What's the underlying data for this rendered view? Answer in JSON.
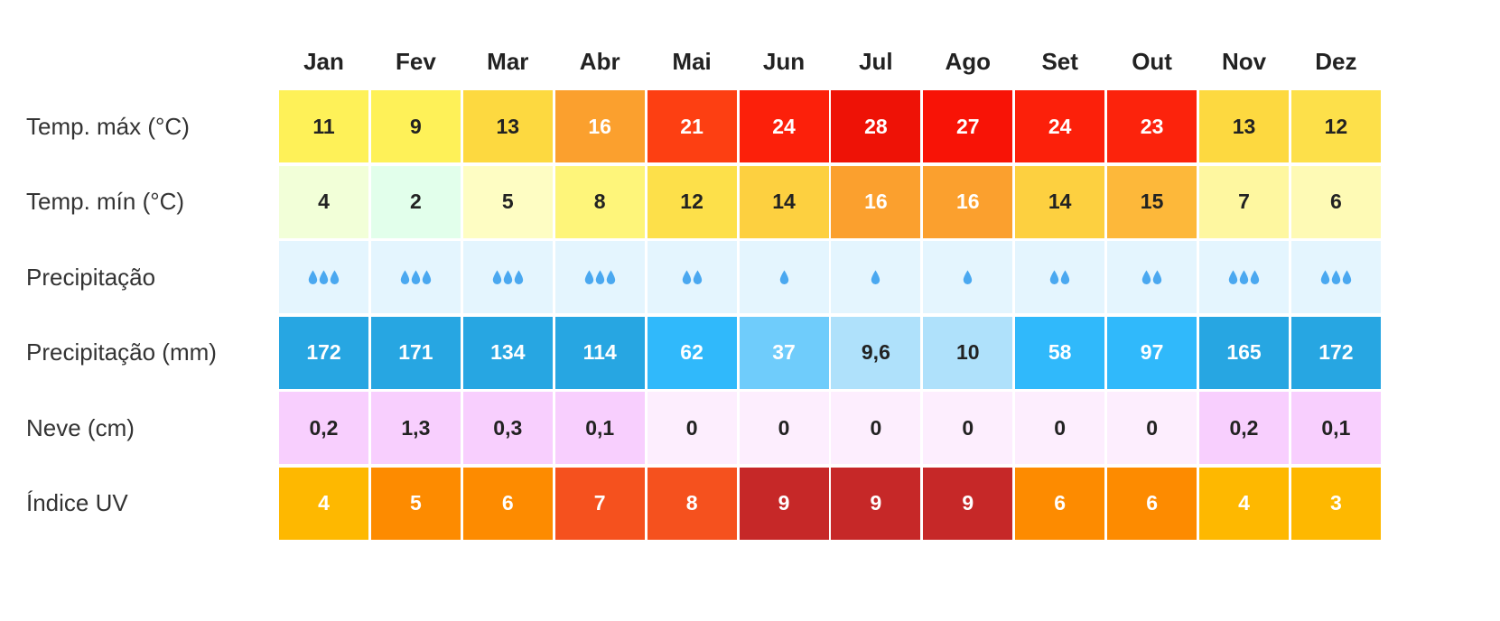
{
  "months": [
    "Jan",
    "Fev",
    "Mar",
    "Abr",
    "Mai",
    "Jun",
    "Jul",
    "Ago",
    "Set",
    "Out",
    "Nov",
    "Dez"
  ],
  "rows": [
    {
      "label": "Temp. máx (°C)",
      "cells": [
        {
          "text": "11",
          "bg": "#FEF158",
          "fg": "#222222"
        },
        {
          "text": "9",
          "bg": "#FEF158",
          "fg": "#222222"
        },
        {
          "text": "13",
          "bg": "#FDD940",
          "fg": "#222222"
        },
        {
          "text": "16",
          "bg": "#FBA02E",
          "fg": "#ffffff"
        },
        {
          "text": "21",
          "bg": "#FD3F12",
          "fg": "#ffffff"
        },
        {
          "text": "24",
          "bg": "#FC200A",
          "fg": "#ffffff"
        },
        {
          "text": "28",
          "bg": "#EE1206",
          "fg": "#ffffff"
        },
        {
          "text": "27",
          "bg": "#F81306",
          "fg": "#ffffff"
        },
        {
          "text": "24",
          "bg": "#FC200A",
          "fg": "#ffffff"
        },
        {
          "text": "23",
          "bg": "#FC230C",
          "fg": "#ffffff"
        },
        {
          "text": "13",
          "bg": "#FDD940",
          "fg": "#222222"
        },
        {
          "text": "12",
          "bg": "#FDE04A",
          "fg": "#222222"
        }
      ]
    },
    {
      "label": "Temp. mín (°C)",
      "cells": [
        {
          "text": "4",
          "bg": "#F2FFD8",
          "fg": "#222222"
        },
        {
          "text": "2",
          "bg": "#E2FFEB",
          "fg": "#222222"
        },
        {
          "text": "5",
          "bg": "#FEFDC3",
          "fg": "#222222"
        },
        {
          "text": "8",
          "bg": "#FEF57A",
          "fg": "#222222"
        },
        {
          "text": "12",
          "bg": "#FDE04A",
          "fg": "#222222"
        },
        {
          "text": "14",
          "bg": "#FDD040",
          "fg": "#222222"
        },
        {
          "text": "16",
          "bg": "#FBA02E",
          "fg": "#ffffff"
        },
        {
          "text": "16",
          "bg": "#FBA02E",
          "fg": "#ffffff"
        },
        {
          "text": "14",
          "bg": "#FDD040",
          "fg": "#222222"
        },
        {
          "text": "15",
          "bg": "#FDB83A",
          "fg": "#222222"
        },
        {
          "text": "7",
          "bg": "#FEF7A0",
          "fg": "#222222"
        },
        {
          "text": "6",
          "bg": "#FEFAB5",
          "fg": "#222222"
        }
      ]
    },
    {
      "label": "Precipitação",
      "cells": [
        {
          "drops": 3,
          "bg": "#E4F5FE"
        },
        {
          "drops": 3,
          "bg": "#E4F5FE"
        },
        {
          "drops": 3,
          "bg": "#E4F5FE"
        },
        {
          "drops": 3,
          "bg": "#E4F5FE"
        },
        {
          "drops": 2,
          "bg": "#E4F5FE"
        },
        {
          "drops": 1,
          "bg": "#E4F5FE"
        },
        {
          "drops": 1,
          "bg": "#E4F5FE"
        },
        {
          "drops": 1,
          "bg": "#E4F5FE"
        },
        {
          "drops": 2,
          "bg": "#E4F5FE"
        },
        {
          "drops": 2,
          "bg": "#E4F5FE"
        },
        {
          "drops": 3,
          "bg": "#E4F5FE"
        },
        {
          "drops": 3,
          "bg": "#E4F5FE"
        }
      ],
      "drop_color": "#4AA8F0"
    },
    {
      "label": "Precipitação (mm)",
      "cells": [
        {
          "text": "172",
          "bg": "#27A6E2",
          "fg": "#ffffff"
        },
        {
          "text": "171",
          "bg": "#27A6E2",
          "fg": "#ffffff"
        },
        {
          "text": "134",
          "bg": "#27A6E2",
          "fg": "#ffffff"
        },
        {
          "text": "114",
          "bg": "#27A6E2",
          "fg": "#ffffff"
        },
        {
          "text": "62",
          "bg": "#30B9FB",
          "fg": "#ffffff"
        },
        {
          "text": "37",
          "bg": "#6FCCFB",
          "fg": "#ffffff"
        },
        {
          "text": "9,6",
          "bg": "#AFE1FB",
          "fg": "#222222"
        },
        {
          "text": "10",
          "bg": "#AFE1FB",
          "fg": "#222222"
        },
        {
          "text": "58",
          "bg": "#30B9FB",
          "fg": "#ffffff"
        },
        {
          "text": "97",
          "bg": "#30B9FB",
          "fg": "#ffffff"
        },
        {
          "text": "165",
          "bg": "#27A6E2",
          "fg": "#ffffff"
        },
        {
          "text": "172",
          "bg": "#27A6E2",
          "fg": "#ffffff"
        }
      ]
    },
    {
      "label": "Neve (cm)",
      "cells": [
        {
          "text": "0,2",
          "bg": "#F8CFFE",
          "fg": "#222222"
        },
        {
          "text": "1,3",
          "bg": "#F8CFFE",
          "fg": "#222222"
        },
        {
          "text": "0,3",
          "bg": "#F8CFFE",
          "fg": "#222222"
        },
        {
          "text": "0,1",
          "bg": "#F8CFFE",
          "fg": "#222222"
        },
        {
          "text": "0",
          "bg": "#FDEEFE",
          "fg": "#222222"
        },
        {
          "text": "0",
          "bg": "#FDEEFE",
          "fg": "#222222"
        },
        {
          "text": "0",
          "bg": "#FDEEFE",
          "fg": "#222222"
        },
        {
          "text": "0",
          "bg": "#FDEEFE",
          "fg": "#222222"
        },
        {
          "text": "0",
          "bg": "#FDEEFE",
          "fg": "#222222"
        },
        {
          "text": "0",
          "bg": "#FDEEFE",
          "fg": "#222222"
        },
        {
          "text": "0,2",
          "bg": "#F8CFFE",
          "fg": "#222222"
        },
        {
          "text": "0,1",
          "bg": "#F8CFFE",
          "fg": "#222222"
        }
      ]
    },
    {
      "label": "Índice UV",
      "cells": [
        {
          "text": "4",
          "bg": "#FEB800",
          "fg": "#ffffff"
        },
        {
          "text": "5",
          "bg": "#FD8B00",
          "fg": "#ffffff"
        },
        {
          "text": "6",
          "bg": "#FD8B00",
          "fg": "#ffffff"
        },
        {
          "text": "7",
          "bg": "#F5511E",
          "fg": "#ffffff"
        },
        {
          "text": "8",
          "bg": "#F5511E",
          "fg": "#ffffff"
        },
        {
          "text": "9",
          "bg": "#C62828",
          "fg": "#ffffff"
        },
        {
          "text": "9",
          "bg": "#C62828",
          "fg": "#ffffff"
        },
        {
          "text": "9",
          "bg": "#C62828",
          "fg": "#ffffff"
        },
        {
          "text": "6",
          "bg": "#FD8B00",
          "fg": "#ffffff"
        },
        {
          "text": "6",
          "bg": "#FD8B00",
          "fg": "#ffffff"
        },
        {
          "text": "4",
          "bg": "#FEB800",
          "fg": "#ffffff"
        },
        {
          "text": "3",
          "bg": "#FEB800",
          "fg": "#ffffff"
        }
      ]
    }
  ]
}
